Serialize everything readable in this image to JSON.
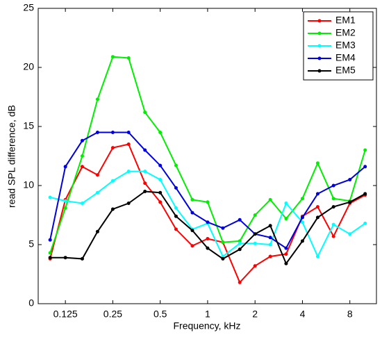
{
  "chart_data": {
    "type": "line",
    "xlabel": "Frequency, kHz",
    "ylabel": "read SPL difference, dB",
    "x": [
      0.1,
      0.125,
      0.16,
      0.2,
      0.25,
      0.315,
      0.4,
      0.5,
      0.63,
      0.8,
      1,
      1.25,
      1.6,
      2,
      2.5,
      3.15,
      4,
      5,
      6.3,
      8,
      10
    ],
    "xscale": "log",
    "xlim": [
      0.084,
      11.8
    ],
    "xticks": [
      0.125,
      0.25,
      0.5,
      1,
      2,
      4,
      8
    ],
    "ylim": [
      0,
      25
    ],
    "yticks": [
      0,
      5,
      10,
      15,
      20,
      25
    ],
    "legend": "upper right",
    "series": [
      {
        "name": "EM1",
        "color": "#ff0000",
        "values": [
          3.8,
          8.8,
          11.6,
          10.9,
          13.2,
          13.5,
          10.2,
          8.6,
          6.3,
          4.9,
          5.5,
          5.2,
          1.8,
          3.2,
          4.0,
          4.2,
          7.4,
          8.2,
          5.7,
          8.5,
          9.2
        ]
      },
      {
        "name": "EM2",
        "color": "#00ee00",
        "values": [
          4.3,
          8.1,
          12.5,
          17.3,
          20.9,
          20.8,
          16.2,
          14.5,
          11.7,
          8.8,
          8.6,
          5.2,
          5.3,
          7.5,
          8.8,
          7.2,
          8.9,
          11.9,
          8.9,
          8.7,
          13.0
        ]
      },
      {
        "name": "EM3",
        "color": "#00ffff",
        "values": [
          9.0,
          8.7,
          8.5,
          9.4,
          10.4,
          11.2,
          11.2,
          10.5,
          8.1,
          6.3,
          6.8,
          4.0,
          5.1,
          5.1,
          5.0,
          8.5,
          6.9,
          4.0,
          6.7,
          5.9,
          6.8
        ]
      },
      {
        "name": "EM4",
        "color": "#0000dd",
        "values": [
          5.4,
          11.6,
          13.8,
          14.5,
          14.5,
          14.5,
          13.0,
          11.7,
          9.8,
          7.7,
          6.9,
          6.4,
          7.1,
          5.9,
          5.6,
          4.7,
          7.3,
          9.3,
          10.0,
          10.5,
          11.6
        ]
      },
      {
        "name": "EM5",
        "color": "#000000",
        "values": [
          3.9,
          3.9,
          3.8,
          6.1,
          8.0,
          8.5,
          9.5,
          9.4,
          7.4,
          6.2,
          4.7,
          3.8,
          4.6,
          5.9,
          6.6,
          3.4,
          5.3,
          7.3,
          8.2,
          8.6,
          9.3
        ]
      }
    ]
  }
}
